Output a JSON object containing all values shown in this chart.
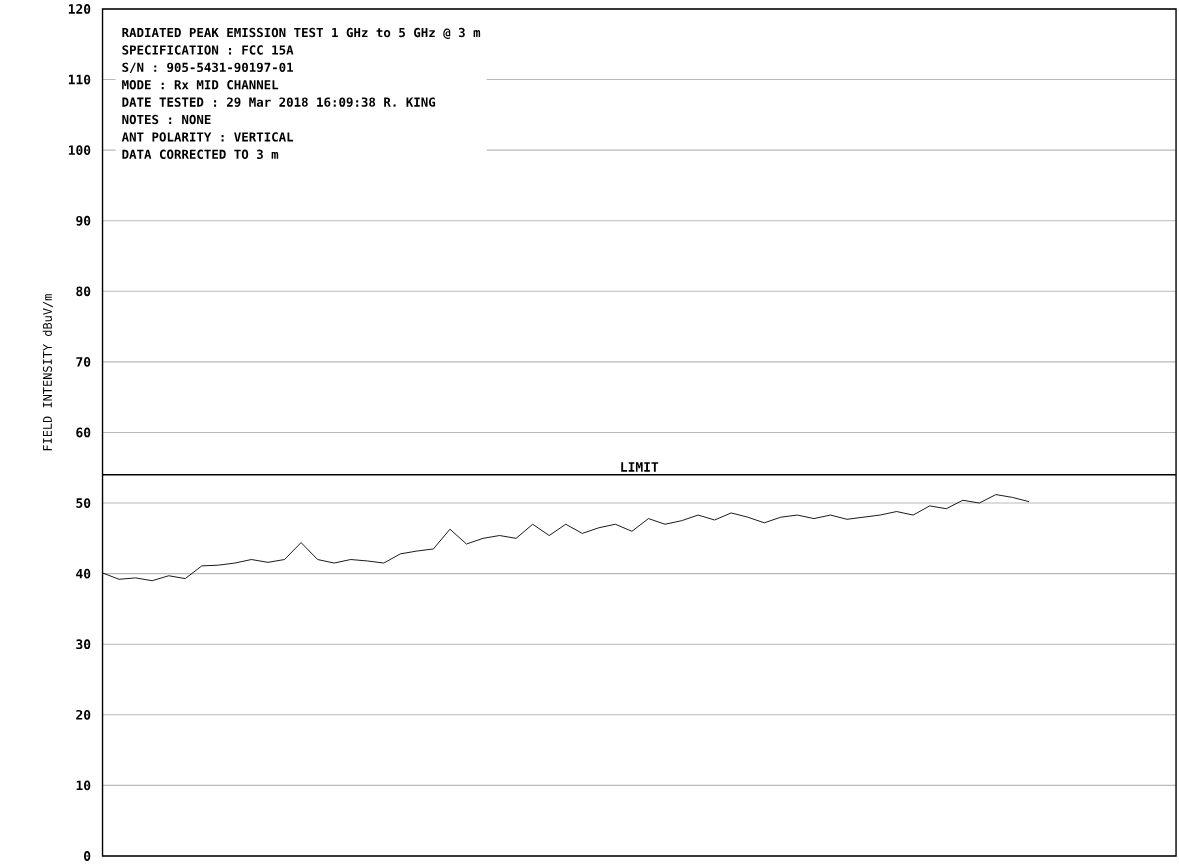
{
  "chart_data": {
    "type": "line",
    "title": "RADIATED PEAK EMISSION TEST 1 GHz to 5 GHz @ 3 m",
    "ylabel": "FIELD INTENSITY    dBuV/m",
    "annotations": [
      "SPECIFICATION : FCC 15A",
      "S/N : 905-5431-90197-01",
      "MODE : Rx MID CHANNEL",
      "DATE TESTED : 29 Mar 2018 16:09:38  R. KING",
      "NOTES : NONE",
      "ANT POLARITY : VERTICAL",
      "DATA CORRECTED TO 3 m"
    ],
    "categories": [
      null,
      null,
      null,
      null,
      null,
      null,
      null,
      null,
      null,
      null,
      null,
      null,
      null,
      null,
      null,
      null,
      null,
      null,
      null,
      null,
      null,
      null,
      null,
      null,
      null,
      null,
      null,
      null,
      null,
      null,
      null,
      null,
      null,
      null,
      null,
      null,
      null,
      null,
      null,
      null,
      null,
      null,
      null,
      null,
      null,
      null,
      null,
      null,
      null,
      null,
      null,
      null,
      null,
      null,
      null,
      null,
      null
    ],
    "values": [
      40.1,
      39.2,
      39.4,
      39.0,
      39.7,
      39.3,
      41.1,
      41.2,
      41.5,
      42.0,
      41.6,
      42.0,
      44.4,
      42.0,
      41.5,
      42.0,
      41.8,
      41.5,
      42.8,
      43.2,
      43.5,
      46.3,
      44.2,
      45.0,
      45.4,
      45.0,
      47.0,
      45.4,
      47.0,
      45.7,
      46.5,
      47.0,
      46.0,
      47.8,
      47.0,
      47.5,
      48.3,
      47.6,
      48.6,
      48.0,
      47.2,
      48.0,
      48.3,
      47.8,
      48.3,
      47.7,
      48.0,
      48.3,
      48.8,
      48.3,
      49.6,
      49.2,
      50.4,
      50.0,
      51.2,
      50.8,
      50.2
    ],
    "color": "#000000",
    "ylim": [
      0,
      120
    ],
    "yticks": [
      0,
      10,
      20,
      30,
      40,
      50,
      60,
      70,
      80,
      90,
      100,
      110,
      120
    ],
    "grid": "y",
    "tick_labels": "y",
    "ref_lines": [
      {
        "axis": "y",
        "value": 54,
        "label": "LIMIT",
        "color": "#000000"
      }
    ]
  }
}
